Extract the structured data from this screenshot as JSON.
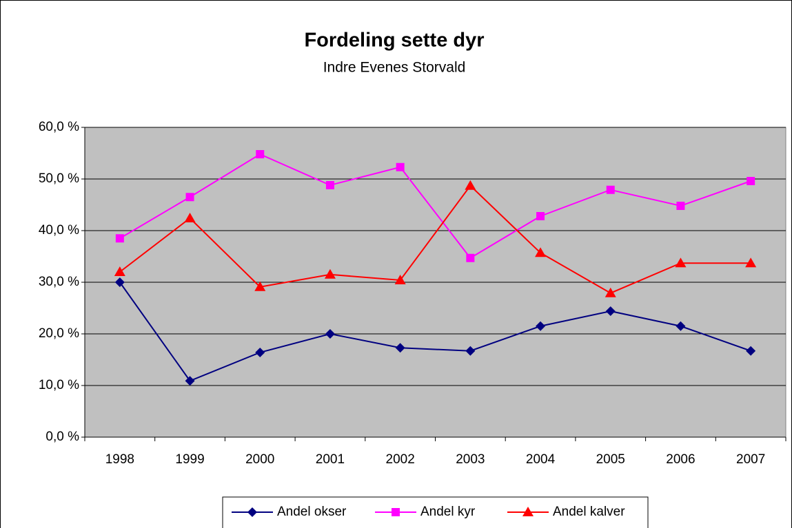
{
  "chart_data": {
    "type": "line",
    "title": "Fordeling sette dyr",
    "subtitle": "Indre Evenes Storvald",
    "categories": [
      "1998",
      "1999",
      "2000",
      "2001",
      "2002",
      "2003",
      "2004",
      "2005",
      "2006",
      "2007"
    ],
    "series": [
      {
        "name": "Andel okser",
        "color": "#000080",
        "marker": "diamond",
        "values": [
          30.0,
          10.9,
          16.4,
          20.0,
          17.3,
          16.7,
          21.5,
          24.4,
          21.5,
          16.7
        ]
      },
      {
        "name": "Andel kyr",
        "color": "#ff00ff",
        "marker": "square",
        "values": [
          38.5,
          46.5,
          54.8,
          48.8,
          52.3,
          34.7,
          42.8,
          47.9,
          44.8,
          49.6
        ]
      },
      {
        "name": "Andel kalver",
        "color": "#ff0000",
        "marker": "triangle",
        "values": [
          32.0,
          42.4,
          29.1,
          31.5,
          30.4,
          48.7,
          35.7,
          27.9,
          33.7,
          33.7
        ]
      }
    ],
    "ylim": [
      0,
      60
    ],
    "yticks": [
      {
        "value": 0,
        "label": "0,0 %"
      },
      {
        "value": 10,
        "label": "10,0 %"
      },
      {
        "value": 20,
        "label": "20,0 %"
      },
      {
        "value": 30,
        "label": "30,0 %"
      },
      {
        "value": 40,
        "label": "40,0 %"
      },
      {
        "value": 50,
        "label": "50,0 %"
      },
      {
        "value": 60,
        "label": "60,0 %"
      }
    ],
    "grid": true,
    "legend": "bottom",
    "plot_background": "#c0c0c0"
  }
}
